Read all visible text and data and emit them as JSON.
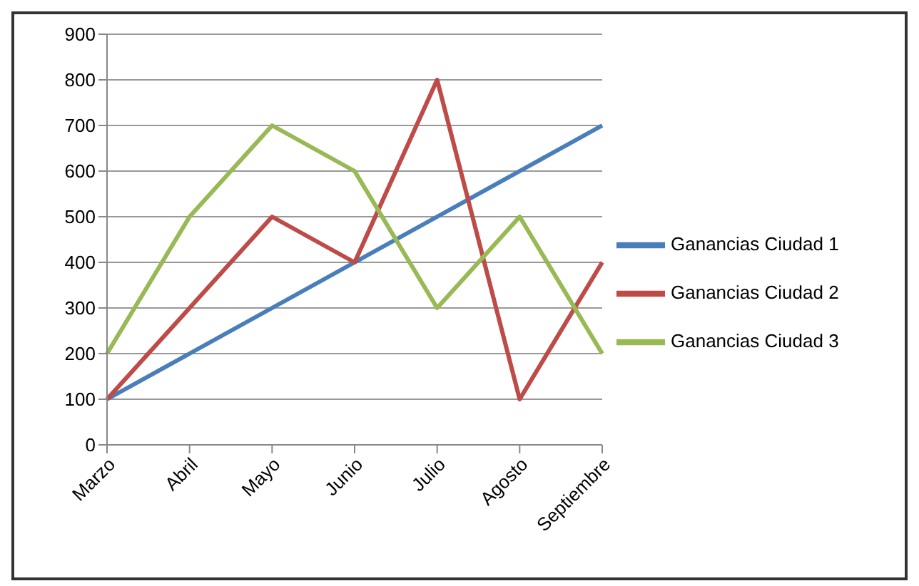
{
  "chart_data": {
    "type": "line",
    "categories": [
      "Marzo",
      "Abril",
      "Mayo",
      "Junio",
      "Julio",
      "Agosto",
      "Septiembre"
    ],
    "series": [
      {
        "name": "Ganancias  Ciudad 1",
        "color": "#4a7ebb",
        "values": [
          100,
          200,
          300,
          400,
          500,
          600,
          700
        ]
      },
      {
        "name": "Ganancias  Ciudad 2",
        "color": "#be4b48",
        "values": [
          100,
          300,
          500,
          400,
          800,
          100,
          400
        ]
      },
      {
        "name": "Ganancias  Ciudad 3",
        "color": "#98b954",
        "values": [
          200,
          500,
          700,
          600,
          300,
          500,
          200
        ]
      }
    ],
    "ylim": [
      0,
      900
    ],
    "yticks": [
      0,
      100,
      200,
      300,
      400,
      500,
      600,
      700,
      800,
      900
    ],
    "grid": "y",
    "legend": "right",
    "marker": "none"
  }
}
